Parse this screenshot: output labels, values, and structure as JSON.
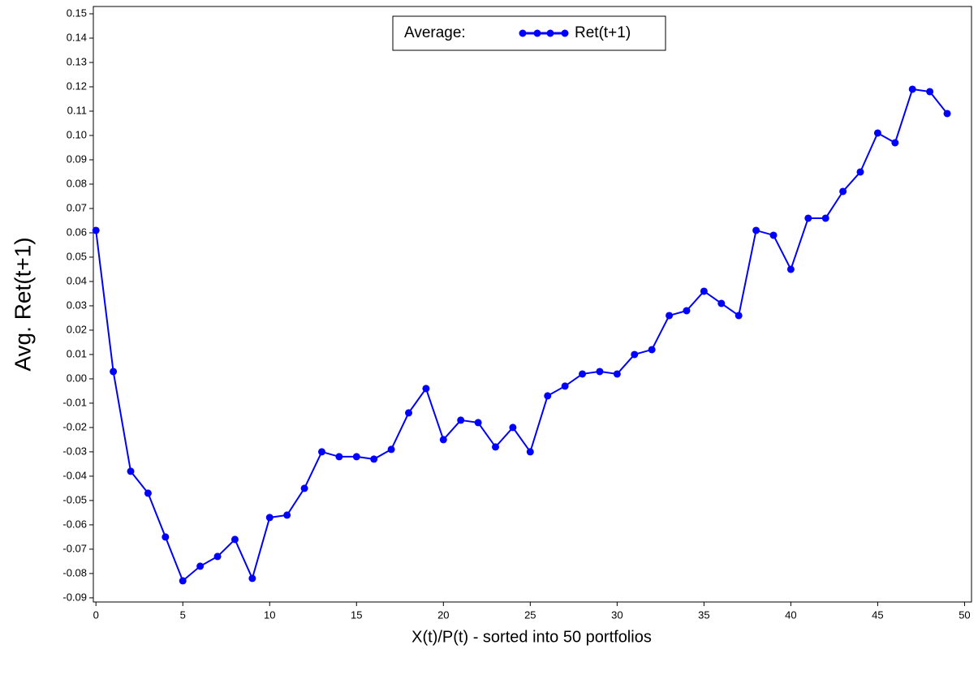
{
  "chart_data": {
    "type": "line",
    "x_label": "X(t)/P(t) - sorted into 50 portfolios",
    "y_label": "Avg. Ret(t+1)",
    "legend_title": "Average:",
    "legend_position": "top",
    "x": [
      0,
      1,
      2,
      3,
      4,
      5,
      6,
      7,
      8,
      9,
      10,
      11,
      12,
      13,
      14,
      15,
      16,
      17,
      18,
      19,
      20,
      21,
      22,
      23,
      24,
      25,
      26,
      27,
      28,
      29,
      30,
      31,
      32,
      33,
      34,
      35,
      36,
      37,
      38,
      39,
      40,
      41,
      42,
      43,
      44,
      45,
      46,
      47,
      48,
      49
    ],
    "series": [
      {
        "name": "Ret(t+1)",
        "color": "#0000ff",
        "values": [
          0.061,
          0.003,
          -0.038,
          -0.047,
          -0.065,
          -0.083,
          -0.077,
          -0.073,
          -0.066,
          -0.082,
          -0.057,
          -0.056,
          -0.045,
          -0.03,
          -0.032,
          -0.032,
          -0.033,
          -0.029,
          -0.014,
          -0.004,
          -0.025,
          -0.017,
          -0.018,
          -0.028,
          -0.02,
          -0.03,
          -0.007,
          -0.003,
          0.002,
          0.003,
          0.002,
          0.01,
          0.012,
          0.026,
          0.028,
          0.036,
          0.031,
          0.026,
          0.061,
          0.059,
          0.045,
          0.066,
          0.066,
          0.077,
          0.085,
          0.101,
          0.097,
          0.119,
          0.118,
          0.109
        ]
      }
    ],
    "xlim": [
      -0.15,
      50.4
    ],
    "xticks": [
      0,
      5,
      10,
      15,
      20,
      25,
      30,
      35,
      40,
      45,
      50
    ],
    "ylim": [
      -0.0917,
      0.153
    ],
    "yticks": [
      {
        "value": -0.09,
        "label": "-0.09"
      },
      {
        "value": -0.08,
        "label": "-0.08"
      },
      {
        "value": -0.07,
        "label": "-0.07"
      },
      {
        "value": -0.06,
        "label": "-0.06"
      },
      {
        "value": -0.05,
        "label": "-0.05"
      },
      {
        "value": -0.04,
        "label": "-0.04"
      },
      {
        "value": -0.03,
        "label": "-0.03"
      },
      {
        "value": -0.02,
        "label": "-0.02"
      },
      {
        "value": -0.01,
        "label": "-0.01"
      },
      {
        "value": 0,
        "label": "0.00"
      },
      {
        "value": 0.01,
        "label": "0.01"
      },
      {
        "value": 0.02,
        "label": "0.02"
      },
      {
        "value": 0.03,
        "label": "0.03"
      },
      {
        "value": 0.04,
        "label": "0.04"
      },
      {
        "value": 0.05,
        "label": "0.05"
      },
      {
        "value": 0.06,
        "label": "0.06"
      },
      {
        "value": 0.07,
        "label": "0.07"
      },
      {
        "value": 0.08,
        "label": "0.08"
      },
      {
        "value": 0.09,
        "label": "0.09"
      },
      {
        "value": 0.1,
        "label": "0.10"
      },
      {
        "value": 0.11,
        "label": "0.11"
      },
      {
        "value": 0.12,
        "label": "0.12"
      },
      {
        "value": 0.13,
        "label": "0.13"
      },
      {
        "value": 0.14,
        "label": "0.14"
      },
      {
        "value": 0.15,
        "label": "0.15"
      }
    ],
    "grid": false
  }
}
